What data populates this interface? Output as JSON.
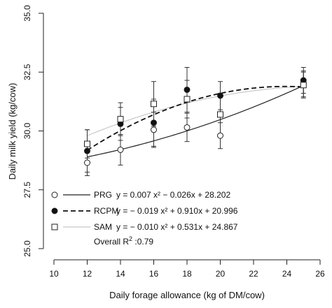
{
  "chart_data": {
    "type": "scatter",
    "xlabel": "Daily forage allowance (kg of DM/cow)",
    "ylabel": "Daily milk yield (kg/cow)",
    "xlim": [
      10,
      26
    ],
    "ylim": [
      25.0,
      35.0
    ],
    "xticks": [
      10,
      12,
      14,
      16,
      18,
      20,
      22,
      24,
      26
    ],
    "yticks": [
      25.0,
      27.5,
      30.0,
      32.5,
      35.0
    ],
    "ytick_labels": [
      "25.0",
      "27.5",
      "30.0",
      "32.5",
      "35.0"
    ],
    "x": [
      12,
      14,
      16,
      18,
      20,
      25
    ],
    "series": [
      {
        "name": "PRG",
        "marker": "open-circle",
        "line_style": "solid",
        "line_color": "#222222",
        "equation": "y = 0.007 x² − 0.026x + 28.202",
        "coefficients": [
          0.007,
          -0.026,
          28.202
        ],
        "values": [
          28.65,
          29.2,
          30.05,
          30.15,
          29.8,
          32.0
        ],
        "error": [
          0.55,
          0.65,
          0.75,
          0.6,
          0.55,
          0.55
        ]
      },
      {
        "name": "RCPM",
        "marker": "filled-circle",
        "line_style": "dashed",
        "line_color": "#111111",
        "equation": "y = − 0.019 x² + 0.910x + 20.996",
        "coefficients": [
          -0.019,
          0.91,
          20.996
        ],
        "values": [
          29.15,
          30.3,
          30.35,
          31.75,
          31.5,
          32.15
        ],
        "error": [
          0.9,
          0.7,
          1.0,
          0.95,
          0.6,
          0.55
        ]
      },
      {
        "name": "SAM",
        "marker": "open-square",
        "line_style": "solid",
        "line_color": "#c8c8c8",
        "equation": "y = − 0.010 x² + 0.531x + 24.867",
        "coefficients": [
          -0.01,
          0.531,
          24.867
        ],
        "values": [
          29.45,
          30.5,
          31.15,
          31.35,
          30.7,
          31.95
        ],
        "error": [
          0.6,
          0.7,
          0.95,
          0.8,
          0.9,
          0.55
        ]
      }
    ],
    "overall": {
      "label": "Overall",
      "r2_text": "R",
      "r2_sup": "2",
      "r2_value": ":0.79"
    },
    "legend_position": "bottom-left"
  }
}
